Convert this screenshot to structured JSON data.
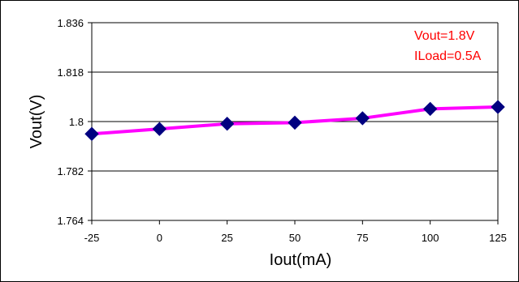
{
  "chart_data": {
    "type": "line",
    "title": "",
    "xlabel": "Iout(mA)",
    "ylabel": "Vout(V)",
    "x": [
      -25,
      0,
      25,
      50,
      75,
      100,
      125
    ],
    "x_tick_labels": [
      "-25",
      "0",
      "25",
      "50",
      "75",
      "100",
      "125"
    ],
    "y_tick_labels": [
      "1.836",
      "1.818",
      "1.8",
      "1.782",
      "1.764"
    ],
    "y_ticks": [
      1.836,
      1.818,
      1.8,
      1.782,
      1.764
    ],
    "ylim": [
      1.764,
      1.836
    ],
    "xlim": [
      -25,
      125
    ],
    "grid": "horizontal",
    "series": [
      {
        "values": [
          1.7955,
          1.7973,
          1.7992,
          1.7996,
          1.8012,
          1.8046,
          1.8053
        ],
        "line_color": "#ff00ff",
        "marker_color": "#000080",
        "marker": "diamond"
      }
    ],
    "annotations": [
      "Vout=1.8V",
      "ILoad=0.5A"
    ],
    "annotation_color": "#ff0000"
  }
}
